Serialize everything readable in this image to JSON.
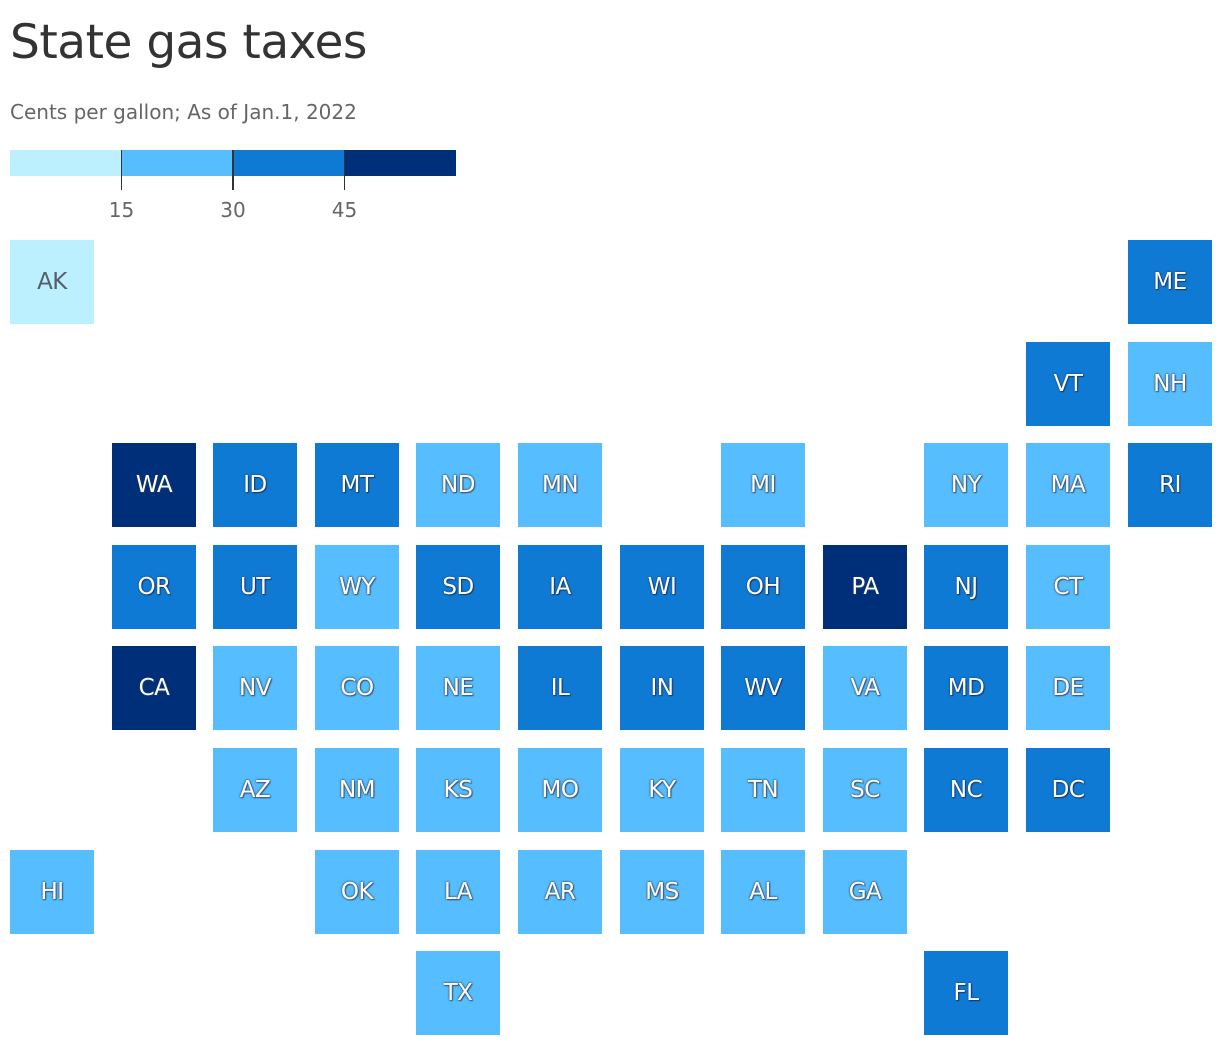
{
  "title": "State gas taxes",
  "subtitle": "Cents per gallon; As of Jan.1, 2022",
  "legend": {
    "bins": [
      {
        "max": 15,
        "color": "#bdf0ff"
      },
      {
        "min": 15,
        "max": 30,
        "color": "#56bdff"
      },
      {
        "min": 30,
        "max": 45,
        "color": "#0f7ad4"
      },
      {
        "min": 45,
        "color": "#002f7a"
      }
    ],
    "ticks": [
      {
        "value": 15,
        "label": "15"
      },
      {
        "value": 30,
        "label": "30"
      },
      {
        "value": 45,
        "label": "45"
      }
    ]
  },
  "chart_data": {
    "type": "heatmap",
    "encoding": "tile grid map, color bin per state",
    "bins": [
      "<15",
      "15–30",
      "30–45",
      "45+"
    ],
    "states": [
      {
        "code": "AK",
        "bin": 0,
        "row": 0,
        "col": 0
      },
      {
        "code": "ME",
        "bin": 2,
        "row": 0,
        "col": 11
      },
      {
        "code": "VT",
        "bin": 2,
        "row": 1,
        "col": 10
      },
      {
        "code": "NH",
        "bin": 1,
        "row": 1,
        "col": 11
      },
      {
        "code": "WA",
        "bin": 3,
        "row": 2,
        "col": 1
      },
      {
        "code": "ID",
        "bin": 2,
        "row": 2,
        "col": 2
      },
      {
        "code": "MT",
        "bin": 2,
        "row": 2,
        "col": 3
      },
      {
        "code": "ND",
        "bin": 1,
        "row": 2,
        "col": 4
      },
      {
        "code": "MN",
        "bin": 1,
        "row": 2,
        "col": 5
      },
      {
        "code": "MI",
        "bin": 1,
        "row": 2,
        "col": 7
      },
      {
        "code": "NY",
        "bin": 1,
        "row": 2,
        "col": 9
      },
      {
        "code": "MA",
        "bin": 1,
        "row": 2,
        "col": 10
      },
      {
        "code": "RI",
        "bin": 2,
        "row": 2,
        "col": 11
      },
      {
        "code": "OR",
        "bin": 2,
        "row": 3,
        "col": 1
      },
      {
        "code": "UT",
        "bin": 2,
        "row": 3,
        "col": 2
      },
      {
        "code": "WY",
        "bin": 1,
        "row": 3,
        "col": 3
      },
      {
        "code": "SD",
        "bin": 2,
        "row": 3,
        "col": 4
      },
      {
        "code": "IA",
        "bin": 2,
        "row": 3,
        "col": 5
      },
      {
        "code": "WI",
        "bin": 2,
        "row": 3,
        "col": 6
      },
      {
        "code": "OH",
        "bin": 2,
        "row": 3,
        "col": 7
      },
      {
        "code": "PA",
        "bin": 3,
        "row": 3,
        "col": 8
      },
      {
        "code": "NJ",
        "bin": 2,
        "row": 3,
        "col": 9
      },
      {
        "code": "CT",
        "bin": 1,
        "row": 3,
        "col": 10
      },
      {
        "code": "CA",
        "bin": 3,
        "row": 4,
        "col": 1
      },
      {
        "code": "NV",
        "bin": 1,
        "row": 4,
        "col": 2
      },
      {
        "code": "CO",
        "bin": 1,
        "row": 4,
        "col": 3
      },
      {
        "code": "NE",
        "bin": 1,
        "row": 4,
        "col": 4
      },
      {
        "code": "IL",
        "bin": 2,
        "row": 4,
        "col": 5
      },
      {
        "code": "IN",
        "bin": 2,
        "row": 4,
        "col": 6
      },
      {
        "code": "WV",
        "bin": 2,
        "row": 4,
        "col": 7
      },
      {
        "code": "VA",
        "bin": 1,
        "row": 4,
        "col": 8
      },
      {
        "code": "MD",
        "bin": 2,
        "row": 4,
        "col": 9
      },
      {
        "code": "DE",
        "bin": 1,
        "row": 4,
        "col": 10
      },
      {
        "code": "AZ",
        "bin": 1,
        "row": 5,
        "col": 2
      },
      {
        "code": "NM",
        "bin": 1,
        "row": 5,
        "col": 3
      },
      {
        "code": "KS",
        "bin": 1,
        "row": 5,
        "col": 4
      },
      {
        "code": "MO",
        "bin": 1,
        "row": 5,
        "col": 5
      },
      {
        "code": "KY",
        "bin": 1,
        "row": 5,
        "col": 6
      },
      {
        "code": "TN",
        "bin": 1,
        "row": 5,
        "col": 7
      },
      {
        "code": "SC",
        "bin": 1,
        "row": 5,
        "col": 8
      },
      {
        "code": "NC",
        "bin": 2,
        "row": 5,
        "col": 9
      },
      {
        "code": "DC",
        "bin": 2,
        "row": 5,
        "col": 10
      },
      {
        "code": "HI",
        "bin": 1,
        "row": 6,
        "col": 0
      },
      {
        "code": "OK",
        "bin": 1,
        "row": 6,
        "col": 3
      },
      {
        "code": "LA",
        "bin": 1,
        "row": 6,
        "col": 4
      },
      {
        "code": "AR",
        "bin": 1,
        "row": 6,
        "col": 5
      },
      {
        "code": "MS",
        "bin": 1,
        "row": 6,
        "col": 6
      },
      {
        "code": "AL",
        "bin": 1,
        "row": 6,
        "col": 7
      },
      {
        "code": "GA",
        "bin": 1,
        "row": 6,
        "col": 8
      },
      {
        "code": "TX",
        "bin": 1,
        "row": 7,
        "col": 4
      },
      {
        "code": "FL",
        "bin": 2,
        "row": 7,
        "col": 9
      }
    ]
  }
}
